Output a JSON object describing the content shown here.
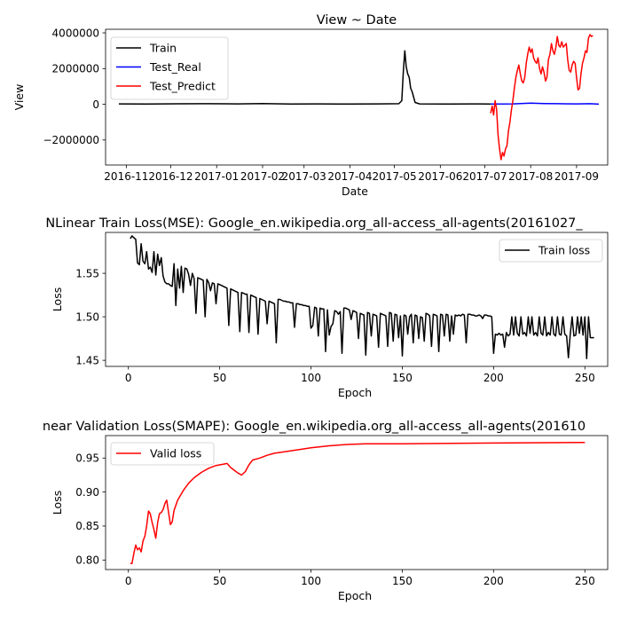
{
  "chart_data": [
    {
      "type": "line",
      "title": "View ~ Date",
      "xlabel": "Date",
      "ylabel": "View",
      "x_tick_labels": [
        "2016-11",
        "2016-12",
        "2017-01",
        "2017-02",
        "2017-03",
        "2017-04",
        "2017-05",
        "2017-06",
        "2017-07",
        "2017-08",
        "2017-09"
      ],
      "y_tick_labels": [
        "−2000000",
        "0",
        "2000000",
        "4000000"
      ],
      "y_ticks": [
        -2000000,
        0,
        2000000,
        4000000
      ],
      "xlim": [
        "2016-10-18",
        "2017-09-22"
      ],
      "ylim": [
        -3400000,
        4200000
      ],
      "legend_position": "upper left",
      "grid": false,
      "series": [
        {
          "name": "Train",
          "color": "#000000",
          "points": [
            [
              "2016-10-27",
              20000
            ],
            [
              "2016-11-15",
              15000
            ],
            [
              "2016-12-05",
              25000
            ],
            [
              "2016-12-25",
              30000
            ],
            [
              "2017-01-15",
              20000
            ],
            [
              "2017-02-01",
              35000
            ],
            [
              "2017-02-20",
              15000
            ],
            [
              "2017-03-10",
              20000
            ],
            [
              "2017-04-01",
              15000
            ],
            [
              "2017-04-20",
              20000
            ],
            [
              "2017-05-04",
              30000
            ],
            [
              "2017-05-06",
              200000
            ],
            [
              "2017-05-07",
              1800000
            ],
            [
              "2017-05-08",
              3000000
            ],
            [
              "2017-05-09",
              2100000
            ],
            [
              "2017-05-10",
              1700000
            ],
            [
              "2017-05-11",
              1500000
            ],
            [
              "2017-05-12",
              900000
            ],
            [
              "2017-05-13",
              700000
            ],
            [
              "2017-05-15",
              100000
            ],
            [
              "2017-05-18",
              20000
            ],
            [
              "2017-06-05",
              15000
            ],
            [
              "2017-06-25",
              20000
            ],
            [
              "2017-07-05",
              15000
            ]
          ]
        },
        {
          "name": "Test_Real",
          "color": "#0000ff",
          "points": [
            [
              "2017-07-05",
              15000
            ],
            [
              "2017-07-20",
              20000
            ],
            [
              "2017-08-01",
              60000
            ],
            [
              "2017-08-10",
              40000
            ],
            [
              "2017-08-20",
              30000
            ],
            [
              "2017-09-01",
              20000
            ],
            [
              "2017-09-10",
              30000
            ],
            [
              "2017-09-16",
              10000
            ]
          ]
        },
        {
          "name": "Test_Predict",
          "color": "#ff0000",
          "points": [
            [
              "2017-07-05",
              -500000
            ],
            [
              "2017-07-06",
              -100000
            ],
            [
              "2017-07-07",
              -600000
            ],
            [
              "2017-07-08",
              200000
            ],
            [
              "2017-07-09",
              -300000
            ],
            [
              "2017-07-10",
              -1700000
            ],
            [
              "2017-07-11",
              -2500000
            ],
            [
              "2017-07-12",
              -3100000
            ],
            [
              "2017-07-13",
              -2700000
            ],
            [
              "2017-07-14",
              -2900000
            ],
            [
              "2017-07-15",
              -2500000
            ],
            [
              "2017-07-16",
              -2300000
            ],
            [
              "2017-07-17",
              -1500000
            ],
            [
              "2017-07-18",
              -1000000
            ],
            [
              "2017-07-19",
              -300000
            ],
            [
              "2017-07-20",
              200000
            ],
            [
              "2017-07-21",
              900000
            ],
            [
              "2017-07-22",
              1500000
            ],
            [
              "2017-07-23",
              1900000
            ],
            [
              "2017-07-24",
              2200000
            ],
            [
              "2017-07-25",
              1700000
            ],
            [
              "2017-07-26",
              1300000
            ],
            [
              "2017-07-27",
              1200000
            ],
            [
              "2017-07-28",
              1500000
            ],
            [
              "2017-07-29",
              2300000
            ],
            [
              "2017-07-30",
              2800000
            ],
            [
              "2017-07-31",
              3200000
            ],
            [
              "2017-08-01",
              2900000
            ],
            [
              "2017-08-02",
              3100000
            ],
            [
              "2017-08-03",
              2600000
            ],
            [
              "2017-08-04",
              2400000
            ],
            [
              "2017-08-05",
              2300000
            ],
            [
              "2017-08-06",
              2600000
            ],
            [
              "2017-08-07",
              2000000
            ],
            [
              "2017-08-08",
              1700000
            ],
            [
              "2017-08-09",
              2100000
            ],
            [
              "2017-08-10",
              1800000
            ],
            [
              "2017-08-11",
              1300000
            ],
            [
              "2017-08-12",
              1500000
            ],
            [
              "2017-08-13",
              2500000
            ],
            [
              "2017-08-14",
              2800000
            ],
            [
              "2017-08-15",
              3400000
            ],
            [
              "2017-08-16",
              3000000
            ],
            [
              "2017-08-17",
              2800000
            ],
            [
              "2017-08-18",
              3200000
            ],
            [
              "2017-08-19",
              3800000
            ],
            [
              "2017-08-20",
              3300000
            ],
            [
              "2017-08-21",
              3200000
            ],
            [
              "2017-08-22",
              3500000
            ],
            [
              "2017-08-23",
              3200000
            ],
            [
              "2017-08-24",
              3300000
            ],
            [
              "2017-08-25",
              3400000
            ],
            [
              "2017-08-26",
              2500000
            ],
            [
              "2017-08-27",
              1900000
            ],
            [
              "2017-08-28",
              1800000
            ],
            [
              "2017-08-29",
              2200000
            ],
            [
              "2017-08-30",
              2400000
            ],
            [
              "2017-08-31",
              2300000
            ],
            [
              "2017-09-01",
              1500000
            ],
            [
              "2017-09-02",
              800000
            ],
            [
              "2017-09-03",
              900000
            ],
            [
              "2017-09-04",
              1700000
            ],
            [
              "2017-09-05",
              2300000
            ],
            [
              "2017-09-06",
              2600000
            ],
            [
              "2017-09-07",
              3000000
            ],
            [
              "2017-09-08",
              2900000
            ],
            [
              "2017-09-09",
              3700000
            ],
            [
              "2017-09-10",
              3900000
            ],
            [
              "2017-09-11",
              3800000
            ],
            [
              "2017-09-12",
              3850000
            ]
          ]
        }
      ]
    },
    {
      "type": "line",
      "title": "NLinear Train Loss(MSE): Google_en.wikipedia.org_all-access_all-agents(20161027_",
      "xlabel": "Epoch",
      "ylabel": "Loss",
      "x_ticks": [
        0,
        50,
        100,
        150,
        200,
        250
      ],
      "y_ticks": [
        1.45,
        1.5,
        1.55
      ],
      "y_tick_labels": [
        "1.45",
        "1.50",
        "1.55"
      ],
      "xlim": [
        -12.5,
        262.5
      ],
      "ylim": [
        1.443,
        1.597
      ],
      "legend_position": "upper right",
      "grid": false,
      "series": [
        {
          "name": "Train loss",
          "color": "#000000",
          "x_start": 1,
          "values": [
            1.59,
            1.593,
            1.591,
            1.589,
            1.562,
            1.56,
            1.584,
            1.564,
            1.561,
            1.575,
            1.555,
            1.557,
            1.551,
            1.575,
            1.548,
            1.572,
            1.559,
            1.568,
            1.547,
            1.54,
            1.538,
            1.538,
            1.536,
            1.535,
            1.561,
            1.513,
            1.555,
            1.533,
            1.558,
            1.528,
            1.556,
            1.555,
            1.549,
            1.536,
            1.55,
            1.544,
            1.504,
            1.545,
            1.544,
            1.543,
            1.542,
            1.5,
            1.543,
            1.539,
            1.53,
            1.539,
            1.538,
            1.515,
            1.538,
            1.537,
            1.536,
            1.535,
            1.534,
            1.533,
            1.49,
            1.532,
            1.531,
            1.53,
            1.529,
            1.528,
            1.483,
            1.528,
            1.527,
            1.526,
            1.526,
            1.482,
            1.525,
            1.524,
            1.523,
            1.522,
            1.48,
            1.521,
            1.52,
            1.519,
            1.518,
            1.492,
            1.518,
            1.517,
            1.516,
            1.515,
            1.47,
            1.52,
            1.52,
            1.519,
            1.518,
            1.518,
            1.517,
            1.517,
            1.516,
            1.516,
            1.488,
            1.515,
            1.515,
            1.514,
            1.514,
            1.513,
            1.513,
            1.512,
            1.512,
            1.487,
            1.49,
            1.511,
            1.51,
            1.478,
            1.51,
            1.509,
            1.509,
            1.46,
            1.508,
            1.479,
            1.489,
            1.492,
            1.507,
            1.506,
            1.503,
            1.506,
            1.458,
            1.51,
            1.51,
            1.509,
            1.508,
            1.497,
            1.507,
            1.506,
            1.505,
            1.475,
            1.504,
            1.503,
            1.502,
            1.456,
            1.505,
            1.504,
            1.478,
            1.503,
            1.502,
            1.501,
            1.465,
            1.504,
            1.503,
            1.502,
            1.501,
            1.466,
            1.505,
            1.504,
            1.472,
            1.503,
            1.502,
            1.476,
            1.501,
            1.455,
            1.502,
            1.501,
            1.48,
            1.5,
            1.503,
            1.47,
            1.502,
            1.501,
            1.475,
            1.5,
            1.499,
            1.472,
            1.504,
            1.503,
            1.501,
            1.466,
            1.503,
            1.502,
            1.501,
            1.46,
            1.503,
            1.502,
            1.478,
            1.503,
            1.502,
            1.472,
            1.501,
            1.48,
            1.502,
            1.501,
            1.502,
            1.501,
            1.503,
            1.502,
            1.47,
            1.503,
            1.503,
            1.502,
            1.502,
            1.501,
            1.501,
            1.502,
            1.501,
            1.498,
            1.502,
            1.502,
            1.501,
            1.501,
            1.5,
            1.458,
            1.48,
            1.479,
            1.481,
            1.479,
            1.48,
            1.465,
            1.482,
            1.478,
            1.48,
            1.5,
            1.479,
            1.5,
            1.481,
            1.478,
            1.5,
            1.48,
            1.482,
            1.478,
            1.5,
            1.481,
            1.5,
            1.479,
            1.482,
            1.478,
            1.5,
            1.481,
            1.479,
            1.5,
            1.478,
            1.482,
            1.479,
            1.5,
            1.48,
            1.478,
            1.5,
            1.48,
            1.479,
            1.5,
            1.48,
            1.478,
            1.453,
            1.48,
            1.5,
            1.478,
            1.479,
            1.5,
            1.481,
            1.5,
            1.479,
            1.5,
            1.452,
            1.5,
            1.476,
            1.476,
            1.476
          ]
        }
      ]
    },
    {
      "type": "line",
      "title": "near Validation Loss(SMAPE): Google_en.wikipedia.org_all-access_all-agents(201610",
      "xlabel": "Epoch",
      "ylabel": "Loss",
      "x_ticks": [
        0,
        50,
        100,
        150,
        200,
        250
      ],
      "y_ticks": [
        0.8,
        0.85,
        0.9,
        0.95
      ],
      "y_tick_labels": [
        "0.80",
        "0.85",
        "0.90",
        "0.95"
      ],
      "xlim": [
        -12.5,
        262.5
      ],
      "ylim": [
        0.786,
        0.983
      ],
      "legend_position": "upper left",
      "grid": false,
      "series": [
        {
          "name": "Valid loss",
          "color": "#ff0000",
          "points": [
            [
              1,
              0.795
            ],
            [
              2,
              0.795
            ],
            [
              3,
              0.81
            ],
            [
              4,
              0.822
            ],
            [
              5,
              0.815
            ],
            [
              6,
              0.818
            ],
            [
              7,
              0.812
            ],
            [
              8,
              0.828
            ],
            [
              9,
              0.835
            ],
            [
              10,
              0.85
            ],
            [
              11,
              0.872
            ],
            [
              12,
              0.868
            ],
            [
              13,
              0.855
            ],
            [
              14,
              0.845
            ],
            [
              15,
              0.832
            ],
            [
              16,
              0.855
            ],
            [
              17,
              0.868
            ],
            [
              18,
              0.87
            ],
            [
              19,
              0.874
            ],
            [
              20,
              0.883
            ],
            [
              21,
              0.888
            ],
            [
              22,
              0.87
            ],
            [
              23,
              0.852
            ],
            [
              24,
              0.856
            ],
            [
              25,
              0.873
            ],
            [
              27,
              0.888
            ],
            [
              30,
              0.902
            ],
            [
              33,
              0.913
            ],
            [
              36,
              0.921
            ],
            [
              40,
              0.929
            ],
            [
              44,
              0.935
            ],
            [
              48,
              0.939
            ],
            [
              52,
              0.941
            ],
            [
              54,
              0.942
            ],
            [
              56,
              0.936
            ],
            [
              58,
              0.932
            ],
            [
              60,
              0.928
            ],
            [
              62,
              0.925
            ],
            [
              64,
              0.93
            ],
            [
              66,
              0.94
            ],
            [
              68,
              0.947
            ],
            [
              72,
              0.95
            ],
            [
              76,
              0.954
            ],
            [
              80,
              0.957
            ],
            [
              90,
              0.961
            ],
            [
              100,
              0.965
            ],
            [
              110,
              0.968
            ],
            [
              120,
              0.97
            ],
            [
              130,
              0.971
            ],
            [
              150,
              0.971
            ],
            [
              200,
              0.972
            ],
            [
              250,
              0.973
            ]
          ]
        }
      ]
    }
  ]
}
